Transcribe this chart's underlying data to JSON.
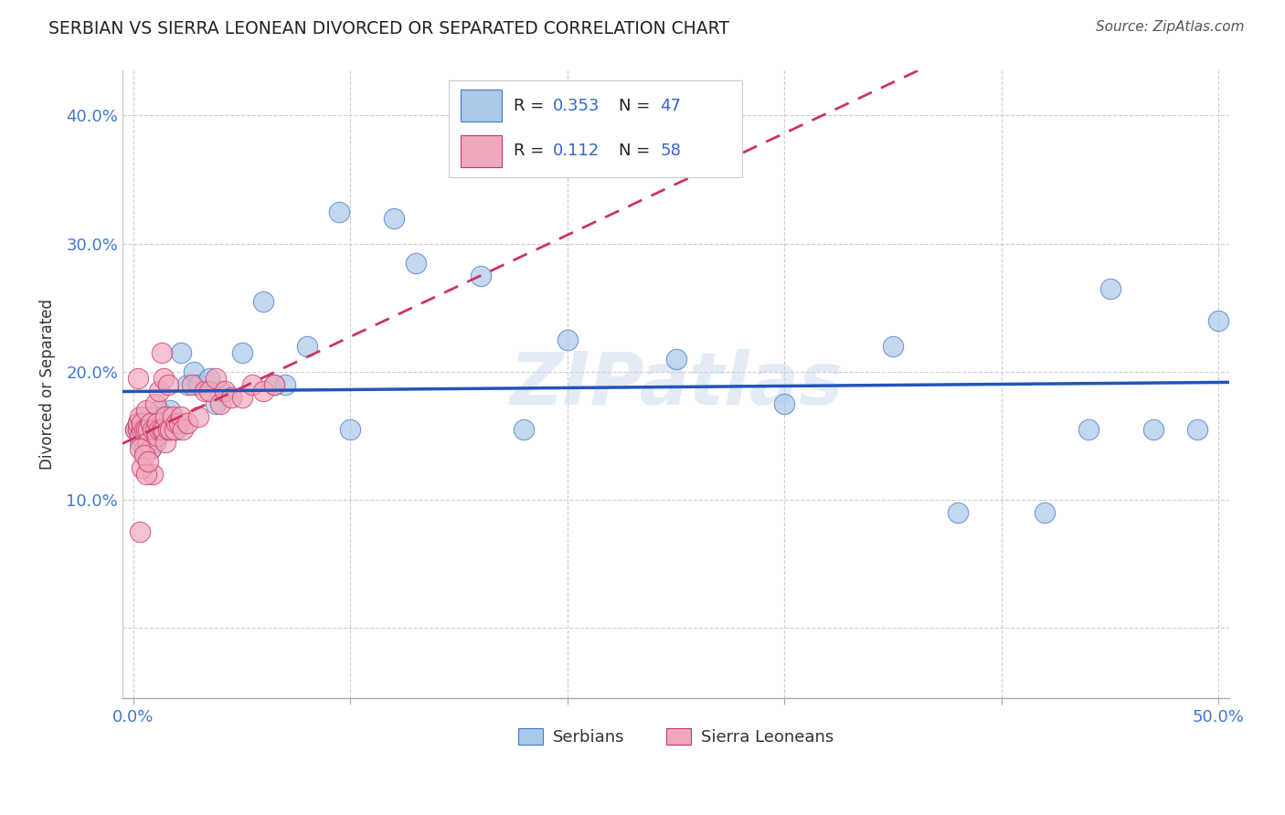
{
  "title": "SERBIAN VS SIERRA LEONEAN DIVORCED OR SEPARATED CORRELATION CHART",
  "source": "Source: ZipAtlas.com",
  "ylabel": "Divorced or Separated",
  "serbian_color": "#aac8e8",
  "sierra_color": "#f0a8bc",
  "serbian_edge_color": "#4477cc",
  "sierra_edge_color": "#cc3366",
  "serbian_line_color": "#2255bb",
  "sierra_line_color": "#cc3366",
  "watermark": "ZIPatlas",
  "xlim": [
    -0.005,
    0.505
  ],
  "ylim": [
    -0.055,
    0.435
  ],
  "xtick_positions": [
    0.0,
    0.1,
    0.2,
    0.3,
    0.4,
    0.5
  ],
  "ytick_positions": [
    0.0,
    0.1,
    0.2,
    0.3,
    0.4
  ],
  "serbian_x": [
    0.001,
    0.002,
    0.003,
    0.004,
    0.005,
    0.006,
    0.007,
    0.008,
    0.009,
    0.01,
    0.011,
    0.012,
    0.013,
    0.015,
    0.016,
    0.017,
    0.018,
    0.02,
    0.022,
    0.025,
    0.028,
    0.03,
    0.035,
    0.038,
    0.04,
    0.05,
    0.06,
    0.065,
    0.07,
    0.08,
    0.095,
    0.1,
    0.12,
    0.13,
    0.16,
    0.18,
    0.2,
    0.25,
    0.3,
    0.35,
    0.38,
    0.42,
    0.45,
    0.47,
    0.49,
    0.5,
    0.44
  ],
  "serbian_y": [
    0.155,
    0.16,
    0.145,
    0.155,
    0.165,
    0.15,
    0.16,
    0.14,
    0.155,
    0.145,
    0.165,
    0.17,
    0.165,
    0.155,
    0.165,
    0.17,
    0.16,
    0.155,
    0.215,
    0.19,
    0.2,
    0.19,
    0.195,
    0.175,
    0.185,
    0.215,
    0.255,
    0.19,
    0.19,
    0.22,
    0.325,
    0.155,
    0.32,
    0.285,
    0.275,
    0.155,
    0.225,
    0.21,
    0.175,
    0.22,
    0.09,
    0.09,
    0.265,
    0.155,
    0.155,
    0.24,
    0.155
  ],
  "sierra_x": [
    0.001,
    0.002,
    0.002,
    0.003,
    0.003,
    0.004,
    0.004,
    0.005,
    0.005,
    0.006,
    0.006,
    0.007,
    0.007,
    0.008,
    0.008,
    0.009,
    0.009,
    0.01,
    0.01,
    0.011,
    0.011,
    0.012,
    0.012,
    0.013,
    0.013,
    0.014,
    0.014,
    0.015,
    0.015,
    0.016,
    0.016,
    0.017,
    0.018,
    0.019,
    0.02,
    0.021,
    0.022,
    0.023,
    0.025,
    0.027,
    0.03,
    0.033,
    0.035,
    0.038,
    0.04,
    0.042,
    0.045,
    0.05,
    0.055,
    0.06,
    0.065,
    0.002,
    0.003,
    0.004,
    0.005,
    0.006,
    0.007,
    0.003
  ],
  "sierra_y": [
    0.155,
    0.155,
    0.16,
    0.15,
    0.165,
    0.155,
    0.16,
    0.155,
    0.14,
    0.155,
    0.17,
    0.155,
    0.145,
    0.16,
    0.14,
    0.155,
    0.12,
    0.155,
    0.175,
    0.15,
    0.16,
    0.155,
    0.185,
    0.155,
    0.215,
    0.155,
    0.195,
    0.165,
    0.145,
    0.155,
    0.19,
    0.155,
    0.165,
    0.155,
    0.16,
    0.16,
    0.165,
    0.155,
    0.16,
    0.19,
    0.165,
    0.185,
    0.185,
    0.195,
    0.175,
    0.185,
    0.18,
    0.18,
    0.19,
    0.185,
    0.19,
    0.195,
    0.14,
    0.125,
    0.135,
    0.12,
    0.13,
    0.075
  ],
  "R_serbian": "0.353",
  "N_serbian": "47",
  "R_sierra": "0.112",
  "N_sierra": "58"
}
